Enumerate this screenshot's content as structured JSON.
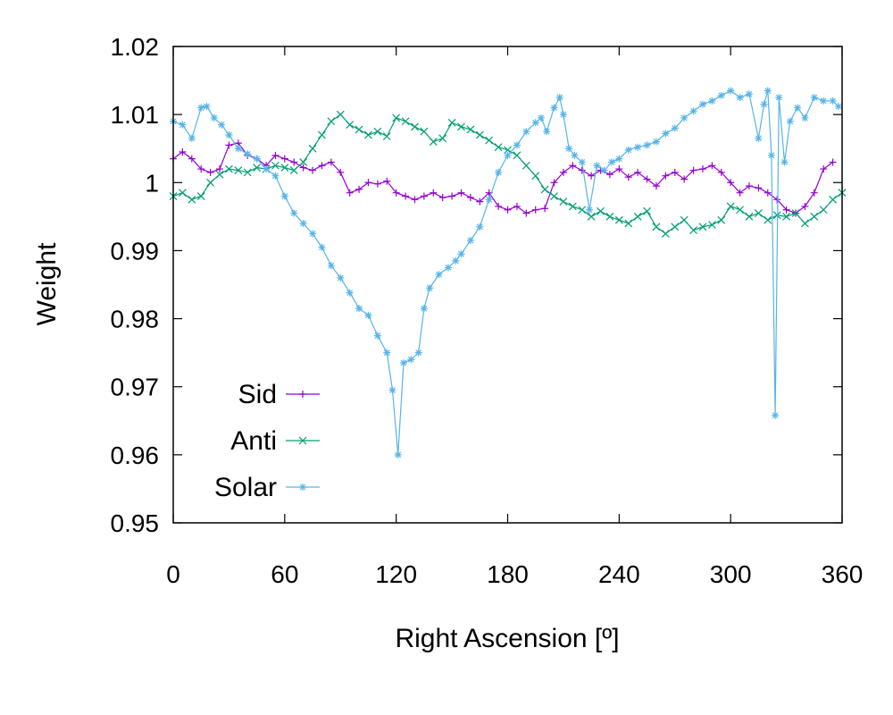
{
  "chart_data": {
    "type": "line",
    "xlabel": "Right Ascension [º]",
    "ylabel": "Weight",
    "xlim": [
      0,
      360
    ],
    "ylim": [
      0.95,
      1.02
    ],
    "xticks": [
      0,
      60,
      120,
      180,
      240,
      300,
      360
    ],
    "yticks": [
      0.95,
      0.96,
      0.97,
      0.98,
      0.99,
      1,
      1.01,
      1.02
    ],
    "xtick_labels": [
      "0",
      "60",
      "120",
      "180",
      "240",
      "300",
      "360"
    ],
    "ytick_labels": [
      "0.95",
      "0.96",
      "0.97",
      "0.98",
      "0.99",
      "1",
      "1.01",
      "1.02"
    ],
    "grid": false,
    "legend_position": "bottom-left",
    "series": [
      {
        "name": "Sid",
        "color": "#9400d3",
        "marker": "plus",
        "points": [
          [
            0,
            1.0035
          ],
          [
            5,
            1.0045
          ],
          [
            10,
            1.0035
          ],
          [
            15,
            1.002
          ],
          [
            20,
            1.0015
          ],
          [
            25,
            1.002
          ],
          [
            30,
            1.0055
          ],
          [
            35,
            1.0058
          ],
          [
            40,
            1.004
          ],
          [
            45,
            1.0035
          ],
          [
            50,
            1.0025
          ],
          [
            55,
            1.004
          ],
          [
            60,
            1.0035
          ],
          [
            65,
            1.003
          ],
          [
            70,
            1.0022
          ],
          [
            75,
            1.0018
          ],
          [
            80,
            1.0025
          ],
          [
            85,
            1.003
          ],
          [
            90,
            1.0015
          ],
          [
            95,
            0.9985
          ],
          [
            100,
            0.999
          ],
          [
            105,
            1.0
          ],
          [
            110,
            0.9998
          ],
          [
            115,
            1.0002
          ],
          [
            120,
            0.9985
          ],
          [
            125,
            0.998
          ],
          [
            130,
            0.9975
          ],
          [
            135,
            0.998
          ],
          [
            140,
            0.9985
          ],
          [
            145,
            0.9978
          ],
          [
            150,
            0.998
          ],
          [
            155,
            0.9985
          ],
          [
            160,
            0.9978
          ],
          [
            165,
            0.9972
          ],
          [
            170,
            0.9985
          ],
          [
            175,
            0.9965
          ],
          [
            180,
            0.996
          ],
          [
            185,
            0.9965
          ],
          [
            190,
            0.9955
          ],
          [
            195,
            0.996
          ],
          [
            200,
            0.9962
          ],
          [
            205,
            1.0
          ],
          [
            210,
            1.0015
          ],
          [
            215,
            1.0025
          ],
          [
            220,
            1.0018
          ],
          [
            225,
            1.001
          ],
          [
            230,
            1.0018
          ],
          [
            235,
            1.0012
          ],
          [
            240,
            1.002
          ],
          [
            245,
            1.0008
          ],
          [
            250,
            1.0015
          ],
          [
            255,
            1.0005
          ],
          [
            260,
            0.9995
          ],
          [
            265,
            1.001
          ],
          [
            270,
            1.0015
          ],
          [
            275,
            1.0005
          ],
          [
            280,
            1.0018
          ],
          [
            285,
            1.002
          ],
          [
            290,
            1.0025
          ],
          [
            295,
            1.0015
          ],
          [
            300,
            1.0
          ],
          [
            305,
            0.9985
          ],
          [
            310,
            0.9995
          ],
          [
            315,
            0.9992
          ],
          [
            320,
            0.9985
          ],
          [
            325,
            0.9975
          ],
          [
            330,
            0.996
          ],
          [
            335,
            0.9955
          ],
          [
            340,
            0.9965
          ],
          [
            345,
            0.9985
          ],
          [
            350,
            1.002
          ],
          [
            355,
            1.003
          ]
        ]
      },
      {
        "name": "Anti",
        "color": "#009e73",
        "marker": "cross",
        "points": [
          [
            0,
            0.998
          ],
          [
            5,
            0.9985
          ],
          [
            10,
            0.9975
          ],
          [
            15,
            0.998
          ],
          [
            20,
            1.0
          ],
          [
            25,
            1.0012
          ],
          [
            30,
            1.002
          ],
          [
            35,
            1.0018
          ],
          [
            40,
            1.0015
          ],
          [
            45,
            1.0022
          ],
          [
            50,
            1.002
          ],
          [
            55,
            1.0025
          ],
          [
            60,
            1.0022
          ],
          [
            65,
            1.0018
          ],
          [
            70,
            1.003
          ],
          [
            75,
            1.005
          ],
          [
            80,
            1.007
          ],
          [
            85,
            1.009
          ],
          [
            90,
            1.01
          ],
          [
            95,
            1.0085
          ],
          [
            100,
            1.0078
          ],
          [
            105,
            1.007
          ],
          [
            110,
            1.0075
          ],
          [
            115,
            1.0068
          ],
          [
            120,
            1.0095
          ],
          [
            125,
            1.009
          ],
          [
            130,
            1.0082
          ],
          [
            135,
            1.0075
          ],
          [
            140,
            1.006
          ],
          [
            145,
            1.0065
          ],
          [
            150,
            1.0088
          ],
          [
            155,
            1.0082
          ],
          [
            160,
            1.0078
          ],
          [
            165,
            1.007
          ],
          [
            170,
            1.0062
          ],
          [
            175,
            1.0052
          ],
          [
            180,
            1.0048
          ],
          [
            185,
            1.004
          ],
          [
            190,
            1.0025
          ],
          [
            195,
            1.001
          ],
          [
            200,
            0.999
          ],
          [
            205,
            0.998
          ],
          [
            210,
            0.9972
          ],
          [
            215,
            0.9965
          ],
          [
            220,
            0.996
          ],
          [
            225,
            0.995
          ],
          [
            230,
            0.9958
          ],
          [
            235,
            0.995
          ],
          [
            240,
            0.9945
          ],
          [
            245,
            0.994
          ],
          [
            250,
            0.995
          ],
          [
            255,
            0.9958
          ],
          [
            260,
            0.9935
          ],
          [
            265,
            0.9925
          ],
          [
            270,
            0.9935
          ],
          [
            275,
            0.9945
          ],
          [
            280,
            0.993
          ],
          [
            285,
            0.9935
          ],
          [
            290,
            0.9938
          ],
          [
            295,
            0.9945
          ],
          [
            300,
            0.9965
          ],
          [
            305,
            0.996
          ],
          [
            310,
            0.995
          ],
          [
            315,
            0.9955
          ],
          [
            320,
            0.9945
          ],
          [
            325,
            0.9952
          ],
          [
            330,
            0.995
          ],
          [
            335,
            0.9955
          ],
          [
            340,
            0.994
          ],
          [
            345,
            0.995
          ],
          [
            350,
            0.996
          ],
          [
            355,
            0.9975
          ],
          [
            360,
            0.9985
          ]
        ]
      },
      {
        "name": "Solar",
        "color": "#56b4e9",
        "marker": "star",
        "points": [
          [
            0,
            1.009
          ],
          [
            5,
            1.0085
          ],
          [
            10,
            1.0065
          ],
          [
            15,
            1.011
          ],
          [
            18,
            1.0112
          ],
          [
            22,
            1.0095
          ],
          [
            26,
            1.0085
          ],
          [
            30,
            1.007
          ],
          [
            35,
            1.005
          ],
          [
            40,
            1.0042
          ],
          [
            45,
            1.0035
          ],
          [
            50,
            1.002
          ],
          [
            55,
            1.001
          ],
          [
            60,
            0.998
          ],
          [
            65,
            0.9955
          ],
          [
            70,
            0.994
          ],
          [
            75,
            0.9925
          ],
          [
            80,
            0.9905
          ],
          [
            85,
            0.9878
          ],
          [
            90,
            0.986
          ],
          [
            95,
            0.9838
          ],
          [
            100,
            0.9815
          ],
          [
            105,
            0.9805
          ],
          [
            110,
            0.9775
          ],
          [
            115,
            0.975
          ],
          [
            118,
            0.9695
          ],
          [
            121,
            0.96
          ],
          [
            124,
            0.9735
          ],
          [
            128,
            0.974
          ],
          [
            132,
            0.975
          ],
          [
            135,
            0.9815
          ],
          [
            138,
            0.9845
          ],
          [
            143,
            0.9865
          ],
          [
            148,
            0.9875
          ],
          [
            152,
            0.9885
          ],
          [
            155,
            0.9895
          ],
          [
            160,
            0.9915
          ],
          [
            165,
            0.9935
          ],
          [
            170,
            0.9975
          ],
          [
            175,
            1.0015
          ],
          [
            180,
            1.004
          ],
          [
            185,
            1.0055
          ],
          [
            190,
            1.0075
          ],
          [
            195,
            1.0088
          ],
          [
            198,
            1.0095
          ],
          [
            201,
            1.0075
          ],
          [
            205,
            1.011
          ],
          [
            208,
            1.0125
          ],
          [
            210,
            1.01
          ],
          [
            213,
            1.005
          ],
          [
            216,
            1.004
          ],
          [
            220,
            1.003
          ],
          [
            224,
            0.996
          ],
          [
            228,
            1.0025
          ],
          [
            232,
            1.0018
          ],
          [
            236,
            1.003
          ],
          [
            240,
            1.0035
          ],
          [
            245,
            1.0048
          ],
          [
            250,
            1.0052
          ],
          [
            255,
            1.0055
          ],
          [
            260,
            1.006
          ],
          [
            265,
            1.0072
          ],
          [
            270,
            1.008
          ],
          [
            275,
            1.0095
          ],
          [
            280,
            1.0105
          ],
          [
            285,
            1.0115
          ],
          [
            290,
            1.012
          ],
          [
            295,
            1.0128
          ],
          [
            300,
            1.0135
          ],
          [
            305,
            1.0125
          ],
          [
            310,
            1.013
          ],
          [
            315,
            1.0065
          ],
          [
            318,
            1.0115
          ],
          [
            320,
            1.0135
          ],
          [
            322,
            1.004
          ],
          [
            324,
            0.9658
          ],
          [
            326,
            1.0125
          ],
          [
            329,
            1.003
          ],
          [
            332,
            1.009
          ],
          [
            336,
            1.011
          ],
          [
            340,
            1.0095
          ],
          [
            345,
            1.0125
          ],
          [
            350,
            1.012
          ],
          [
            355,
            1.012
          ],
          [
            358,
            1.0112
          ]
        ]
      }
    ]
  }
}
